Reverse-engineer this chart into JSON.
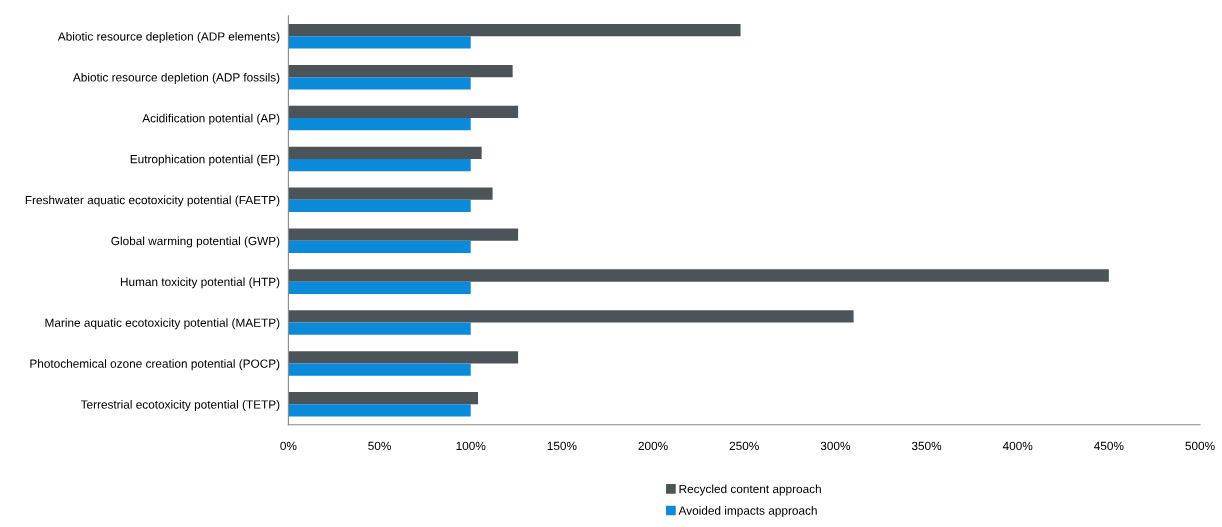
{
  "chart_data": {
    "type": "bar",
    "orientation": "horizontal",
    "categories": [
      "Abiotic resource depletion (ADP elements)",
      "Abiotic resource depletion (ADP fossils)",
      "Acidification potential (AP)",
      "Eutrophication potential (EP)",
      "Freshwater aquatic ecotoxicity potential (FAETP)",
      "Global warming potential (GWP)",
      "Human toxicity potential (HTP)",
      "Marine aquatic ecotoxicity potential (MAETP)",
      "Photochemical ozone creation potential (POCP)",
      "Terrestrial ecotoxicity potential (TETP)"
    ],
    "series": [
      {
        "name": "Recycled content approach",
        "color": "#4a5459",
        "values": [
          248,
          123,
          126,
          106,
          112,
          126,
          450,
          310,
          126,
          104
        ]
      },
      {
        "name": "Avoided impacts approach",
        "color": "#0a8ad8",
        "values": [
          100,
          100,
          100,
          100,
          100,
          100,
          100,
          100,
          100,
          100
        ]
      }
    ],
    "xlim": [
      0,
      500
    ],
    "xticks": [
      {
        "value": 0,
        "label": "0%"
      },
      {
        "value": 50,
        "label": "50%"
      },
      {
        "value": 100,
        "label": "100%"
      },
      {
        "value": 150,
        "label": "150%"
      },
      {
        "value": 200,
        "label": "200%"
      },
      {
        "value": 250,
        "label": "250%"
      },
      {
        "value": 300,
        "label": "300%"
      },
      {
        "value": 350,
        "label": "350%"
      },
      {
        "value": 400,
        "label": "400%"
      },
      {
        "value": 450,
        "label": "450%"
      },
      {
        "value": 500,
        "label": "500%"
      }
    ],
    "grid": false,
    "legend": "bottom"
  }
}
